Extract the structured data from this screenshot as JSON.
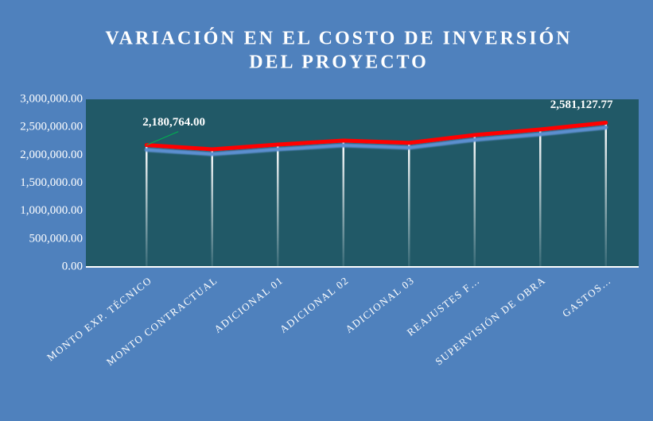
{
  "chart_data": {
    "type": "line",
    "title": [
      "VARIACIÓN EN EL COSTO DE INVERSIÓN",
      "DEL PROYECTO"
    ],
    "categories": [
      "MONTO EXP. TÉCNICO",
      "MONTO CONTRACTUAL",
      "ADICIONAL 01",
      "ADICIONAL 02",
      "ADICIONAL 03",
      "REAJUSTES F…",
      "SUPERVISIÓN DE OBRA",
      "GASTOS…"
    ],
    "values": [
      2180764,
      2105000,
      2190000,
      2260000,
      2220000,
      2360000,
      2460000,
      2581127.77
    ],
    "value_labels": [
      "2,180,764.00",
      null,
      null,
      null,
      null,
      null,
      null,
      "2,581,127.77"
    ],
    "color": "#ff0000",
    "ylim": [
      0,
      3000000
    ],
    "yticks": [
      {
        "value": 0,
        "label": "0.00"
      },
      {
        "value": 500000,
        "label": "500,000.00"
      },
      {
        "value": 1000000,
        "label": "1,000,000.00"
      },
      {
        "value": 1500000,
        "label": "1,500,000.00"
      },
      {
        "value": 2000000,
        "label": "2,000,000.00"
      },
      {
        "value": 2500000,
        "label": "2,500,000.00"
      },
      {
        "value": 3000000,
        "label": "3,000,000.00"
      }
    ]
  }
}
